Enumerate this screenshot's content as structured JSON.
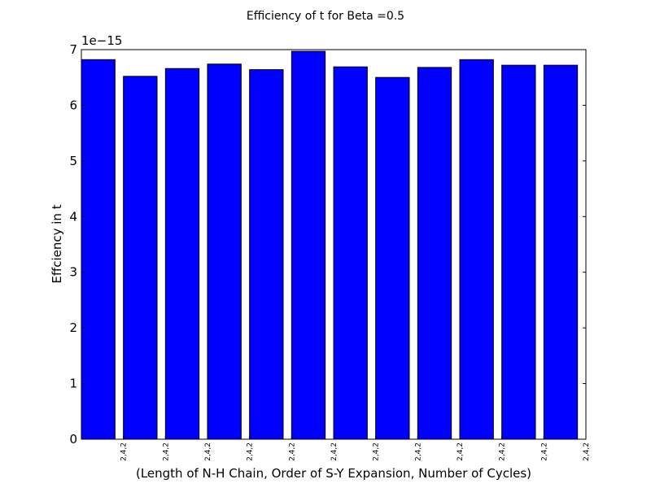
{
  "chart_data": {
    "type": "bar",
    "title": "Efficiency of t for Beta =0.5",
    "xlabel": "(Length of N-H Chain, Order of S-Y Expansion, Number of Cycles)",
    "ylabel": "Effciency in t",
    "y_offset_label": "1e−15",
    "y_scale": 1e-15,
    "ylim": [
      0,
      7
    ],
    "yticks": [
      0,
      1,
      2,
      3,
      4,
      5,
      6,
      7
    ],
    "categories": [
      "2,4,2",
      "2,4,2",
      "2,4,2",
      "2,4,2",
      "2,4,2",
      "2,4,2",
      "2,4,2",
      "2,4,2",
      "2,4,2",
      "2,4,2",
      "2,4,2",
      "2,4,2"
    ],
    "values": [
      6.82,
      6.52,
      6.66,
      6.74,
      6.64,
      6.97,
      6.69,
      6.5,
      6.68,
      6.82,
      6.72,
      6.72
    ],
    "bar_color": "#0000ff",
    "grid": false
  }
}
